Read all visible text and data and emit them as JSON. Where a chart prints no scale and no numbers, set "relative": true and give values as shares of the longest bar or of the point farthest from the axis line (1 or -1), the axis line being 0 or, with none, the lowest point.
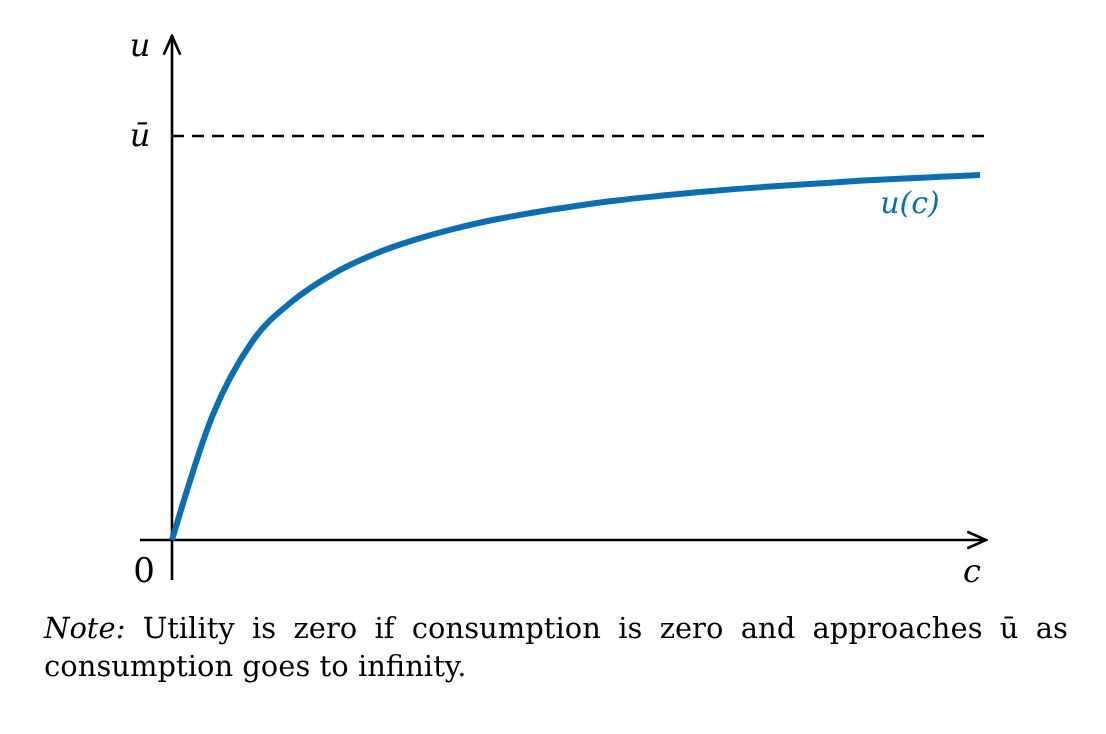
{
  "chart_data": {
    "type": "line",
    "relative": true,
    "xlabel": "c",
    "ylabel": "u",
    "categories": [
      null,
      null,
      null,
      null,
      null,
      null,
      null,
      null,
      null,
      null,
      null,
      null,
      null,
      null,
      null,
      null,
      null,
      null,
      null,
      null,
      null
    ],
    "series": [
      {
        "name": "u(c)",
        "color": "#0a6eb4",
        "values": [
          0,
          0.34,
          0.546,
          0.656,
          0.73,
          0.783,
          0.822,
          0.853,
          0.878,
          0.898,
          0.915,
          0.93,
          0.942,
          0.953,
          0.962,
          0.97,
          0.977,
          0.984,
          0.99,
          0.995,
          1
        ]
      }
    ],
    "ref_lines": [
      {
        "axis": "y",
        "value": 1.107,
        "label": "ū",
        "color": "#000000",
        "line_style": "dashed"
      }
    ],
    "annotations": [
      "0",
      "Note: Utility is zero if consumption is zero and approaches ū as consumption goes to infinity."
    ],
    "marker": "none",
    "line_style": "solid"
  }
}
